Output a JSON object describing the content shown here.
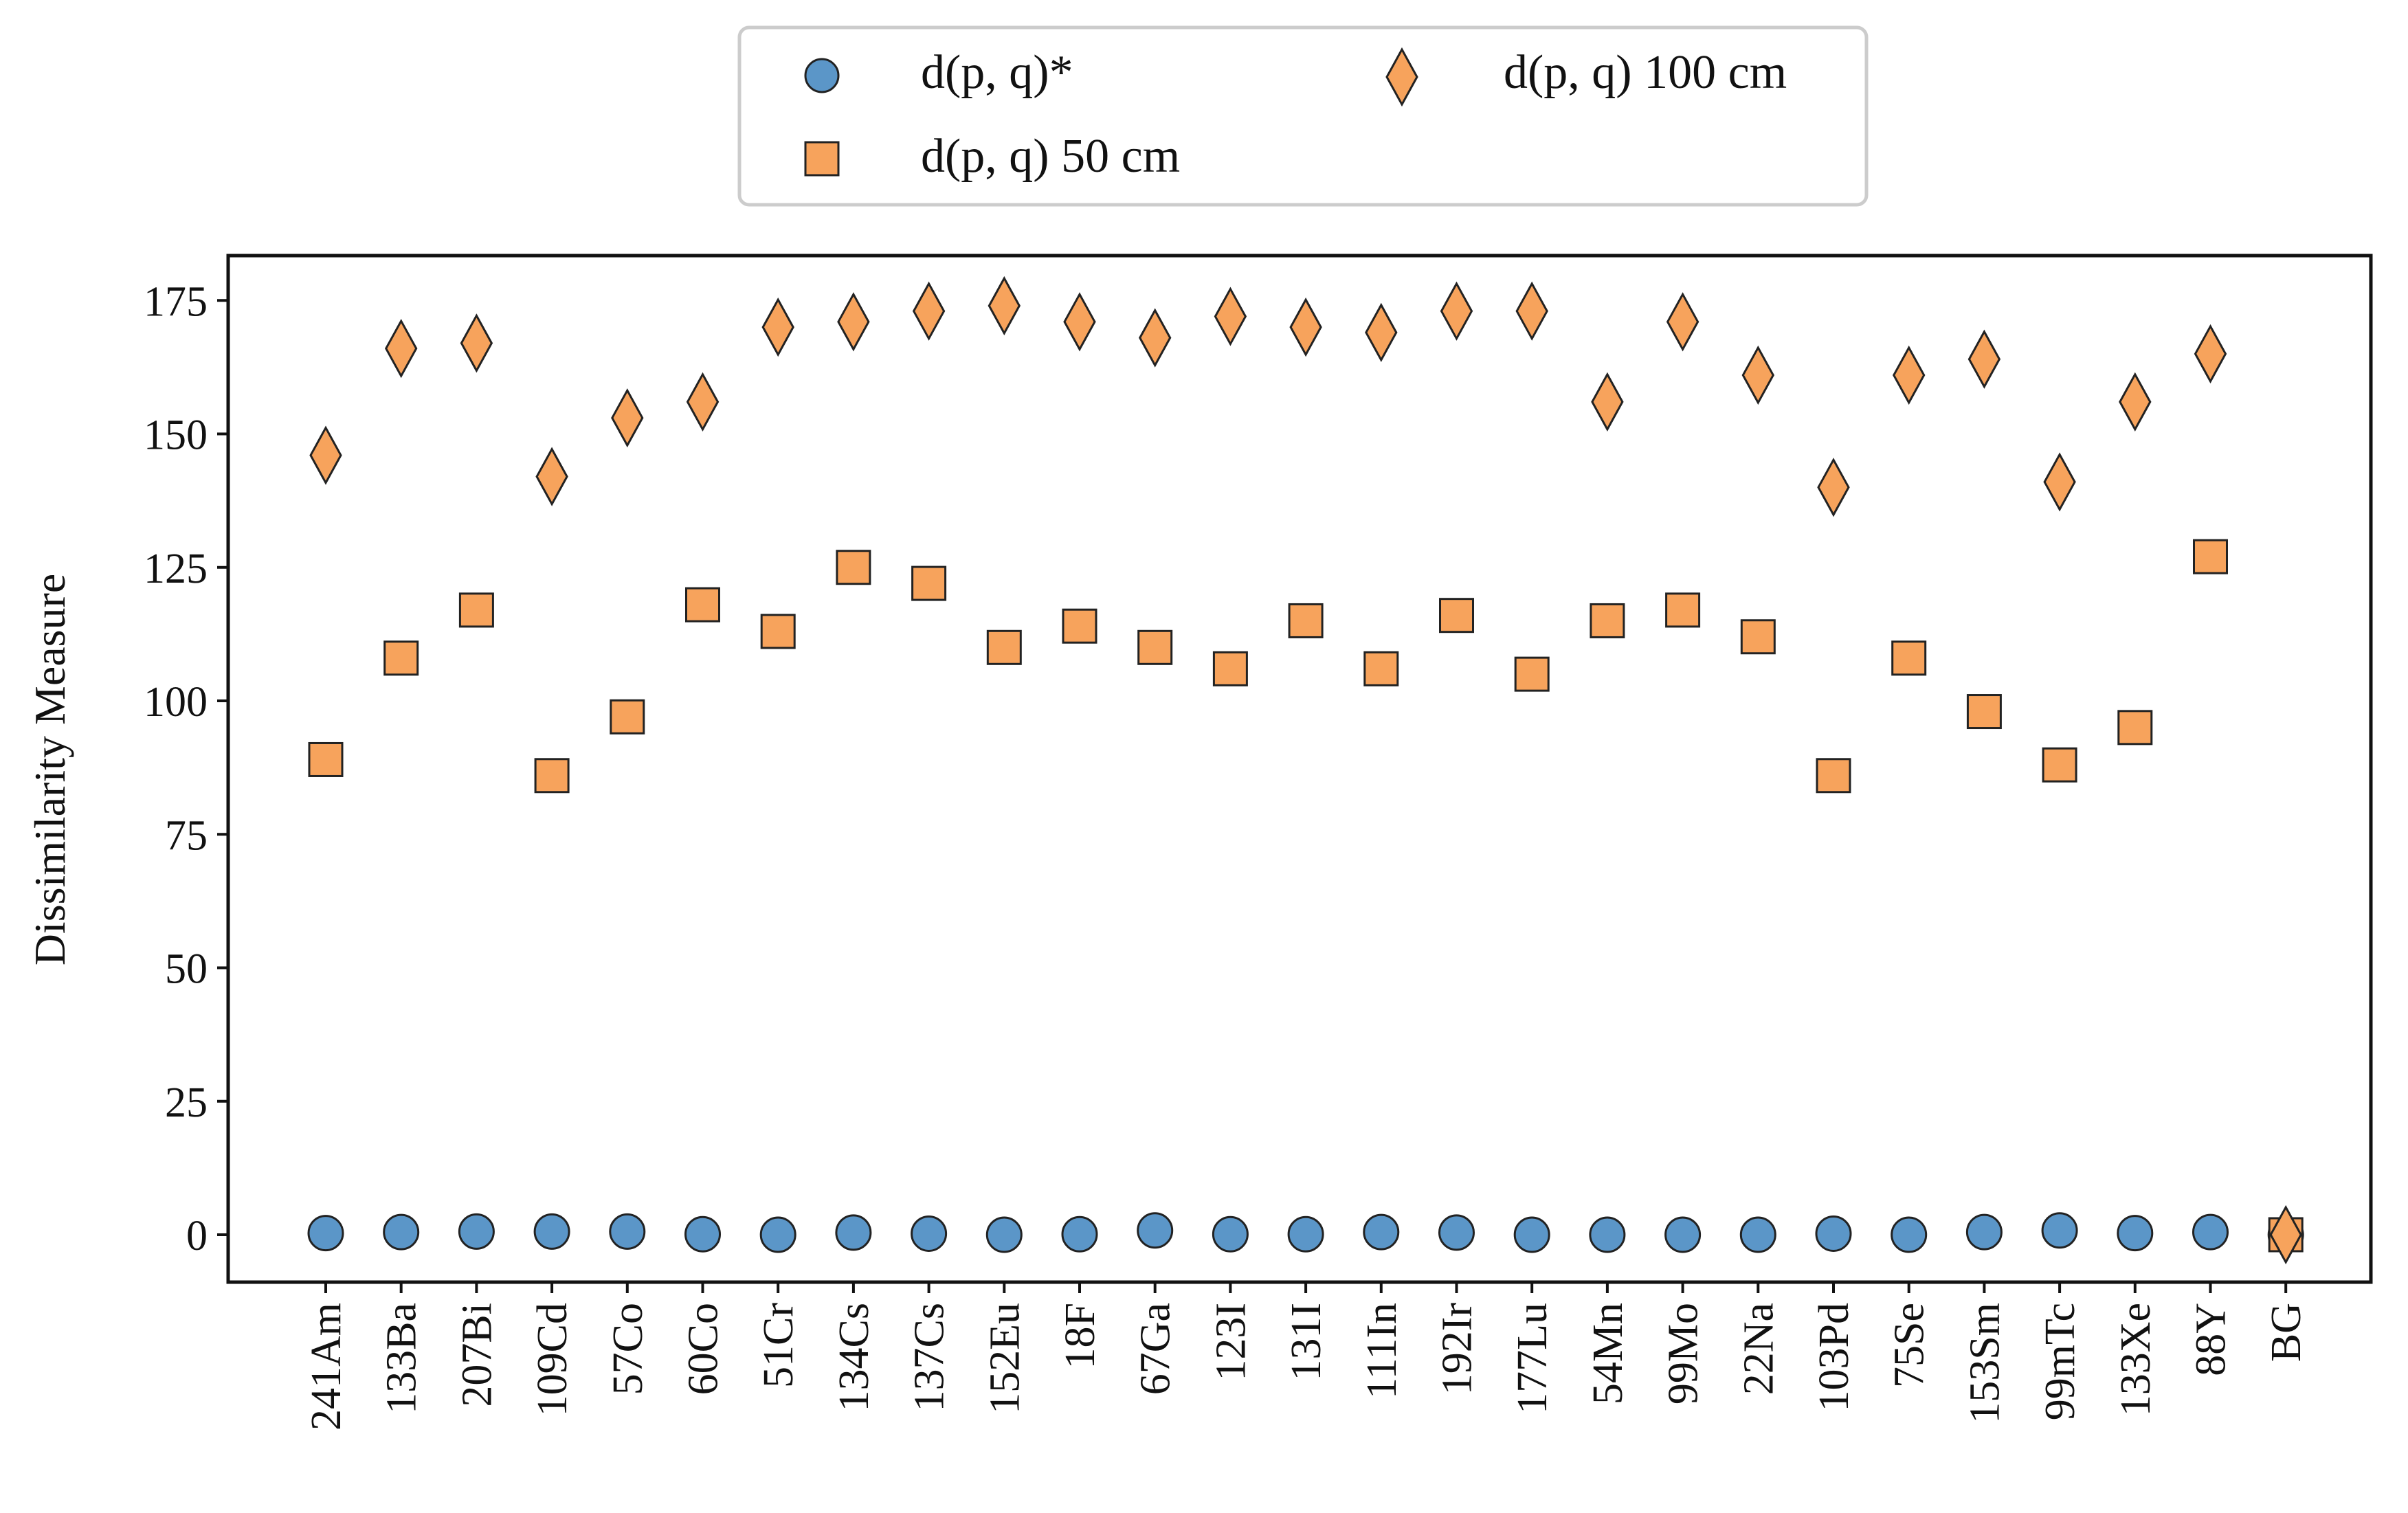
{
  "chart_data": {
    "type": "scatter",
    "title": "",
    "xlabel": "",
    "ylabel": "Dissimilarity Measure",
    "ylim": [
      -4,
      178
    ],
    "yticks": [
      0,
      25,
      50,
      75,
      100,
      125,
      150,
      175
    ],
    "grid": false,
    "legend_position": "top-center",
    "categories": [
      "241Am",
      "133Ba",
      "207Bi",
      "109Cd",
      "57Co",
      "60Co",
      "51Cr",
      "134Cs",
      "137Cs",
      "152Eu",
      "18F",
      "67Ga",
      "123I",
      "131I",
      "111In",
      "192Ir",
      "177Lu",
      "54Mn",
      "99Mo",
      "22Na",
      "103Pd",
      "75Se",
      "153Sm",
      "99mTc",
      "133Xe",
      "88Y",
      "BG"
    ],
    "series": [
      {
        "name": "d(p, q)*",
        "marker": "circle",
        "color": "#5b96c8",
        "values": [
          0.3,
          0.5,
          0.6,
          0.6,
          0.6,
          0.1,
          0.0,
          0.4,
          0.2,
          0.0,
          0.1,
          0.8,
          0.1,
          0.1,
          0.5,
          0.4,
          0.0,
          0.0,
          0.0,
          0.0,
          0.2,
          0.0,
          0.5,
          0.8,
          0.3,
          0.5,
          0.0
        ]
      },
      {
        "name": "d(p, q) 50 cm",
        "marker": "square",
        "color": "#f7a35c",
        "values": [
          89,
          108,
          117,
          86,
          97,
          118,
          113,
          125,
          122,
          110,
          114,
          110,
          106,
          115,
          106,
          116,
          105,
          115,
          117,
          112,
          86,
          108,
          98,
          88,
          95,
          127,
          0
        ]
      },
      {
        "name": "d(p, q) 100 cm",
        "marker": "diamond",
        "color": "#f7a35c",
        "values": [
          146,
          166,
          167,
          142,
          153,
          156,
          170,
          171,
          173,
          174,
          171,
          168,
          172,
          170,
          169,
          173,
          173,
          156,
          171,
          161,
          140,
          161,
          164,
          141,
          156,
          165,
          0
        ]
      }
    ]
  }
}
